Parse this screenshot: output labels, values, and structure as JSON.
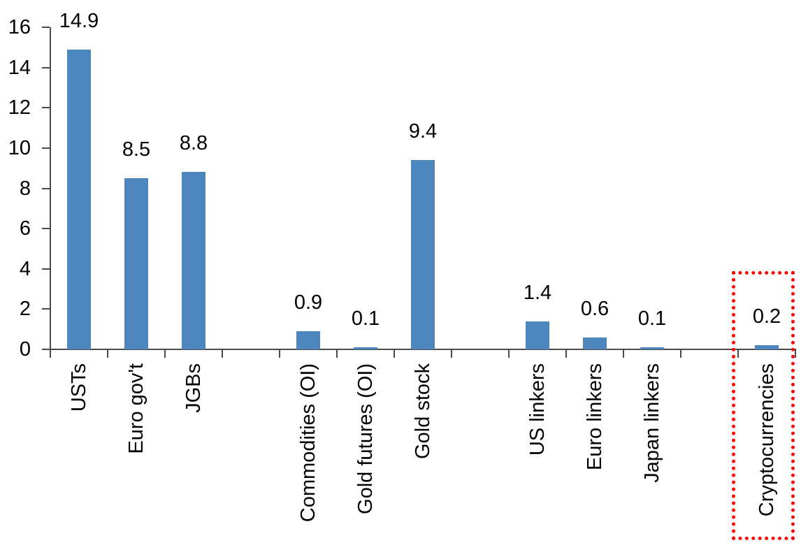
{
  "chart_data": {
    "type": "bar",
    "title": "",
    "xlabel": "",
    "ylabel": "",
    "categories": [
      "USTs",
      "Euro gov't",
      "JGBs",
      "Commodities (OI)",
      "Gold futures (OI)",
      "Gold stock",
      "US linkers",
      "Euro linkers",
      "Japan linkers",
      "Cryptocurrencies"
    ],
    "values": [
      14.9,
      8.5,
      8.8,
      0.9,
      0.1,
      9.4,
      1.4,
      0.6,
      0.1,
      0.2
    ],
    "value_labels": [
      "14.9",
      "8.5",
      "8.8",
      "0.9",
      "0.1",
      "9.4",
      "1.4",
      "0.6",
      "0.1",
      "0.2"
    ],
    "ylim": [
      0,
      16
    ],
    "yticks": [
      0,
      2,
      4,
      6,
      8,
      10,
      12,
      14,
      16
    ],
    "grid": false,
    "legend": false,
    "group_breaks_after": [
      2,
      5,
      8
    ],
    "bar_color": "#4e87be",
    "axis_color": "#4a4a4a",
    "text_color": "#000000",
    "highlight": {
      "category": "Cryptocurrencies",
      "box_color": "#ff0000",
      "box_style": "dotted"
    }
  }
}
